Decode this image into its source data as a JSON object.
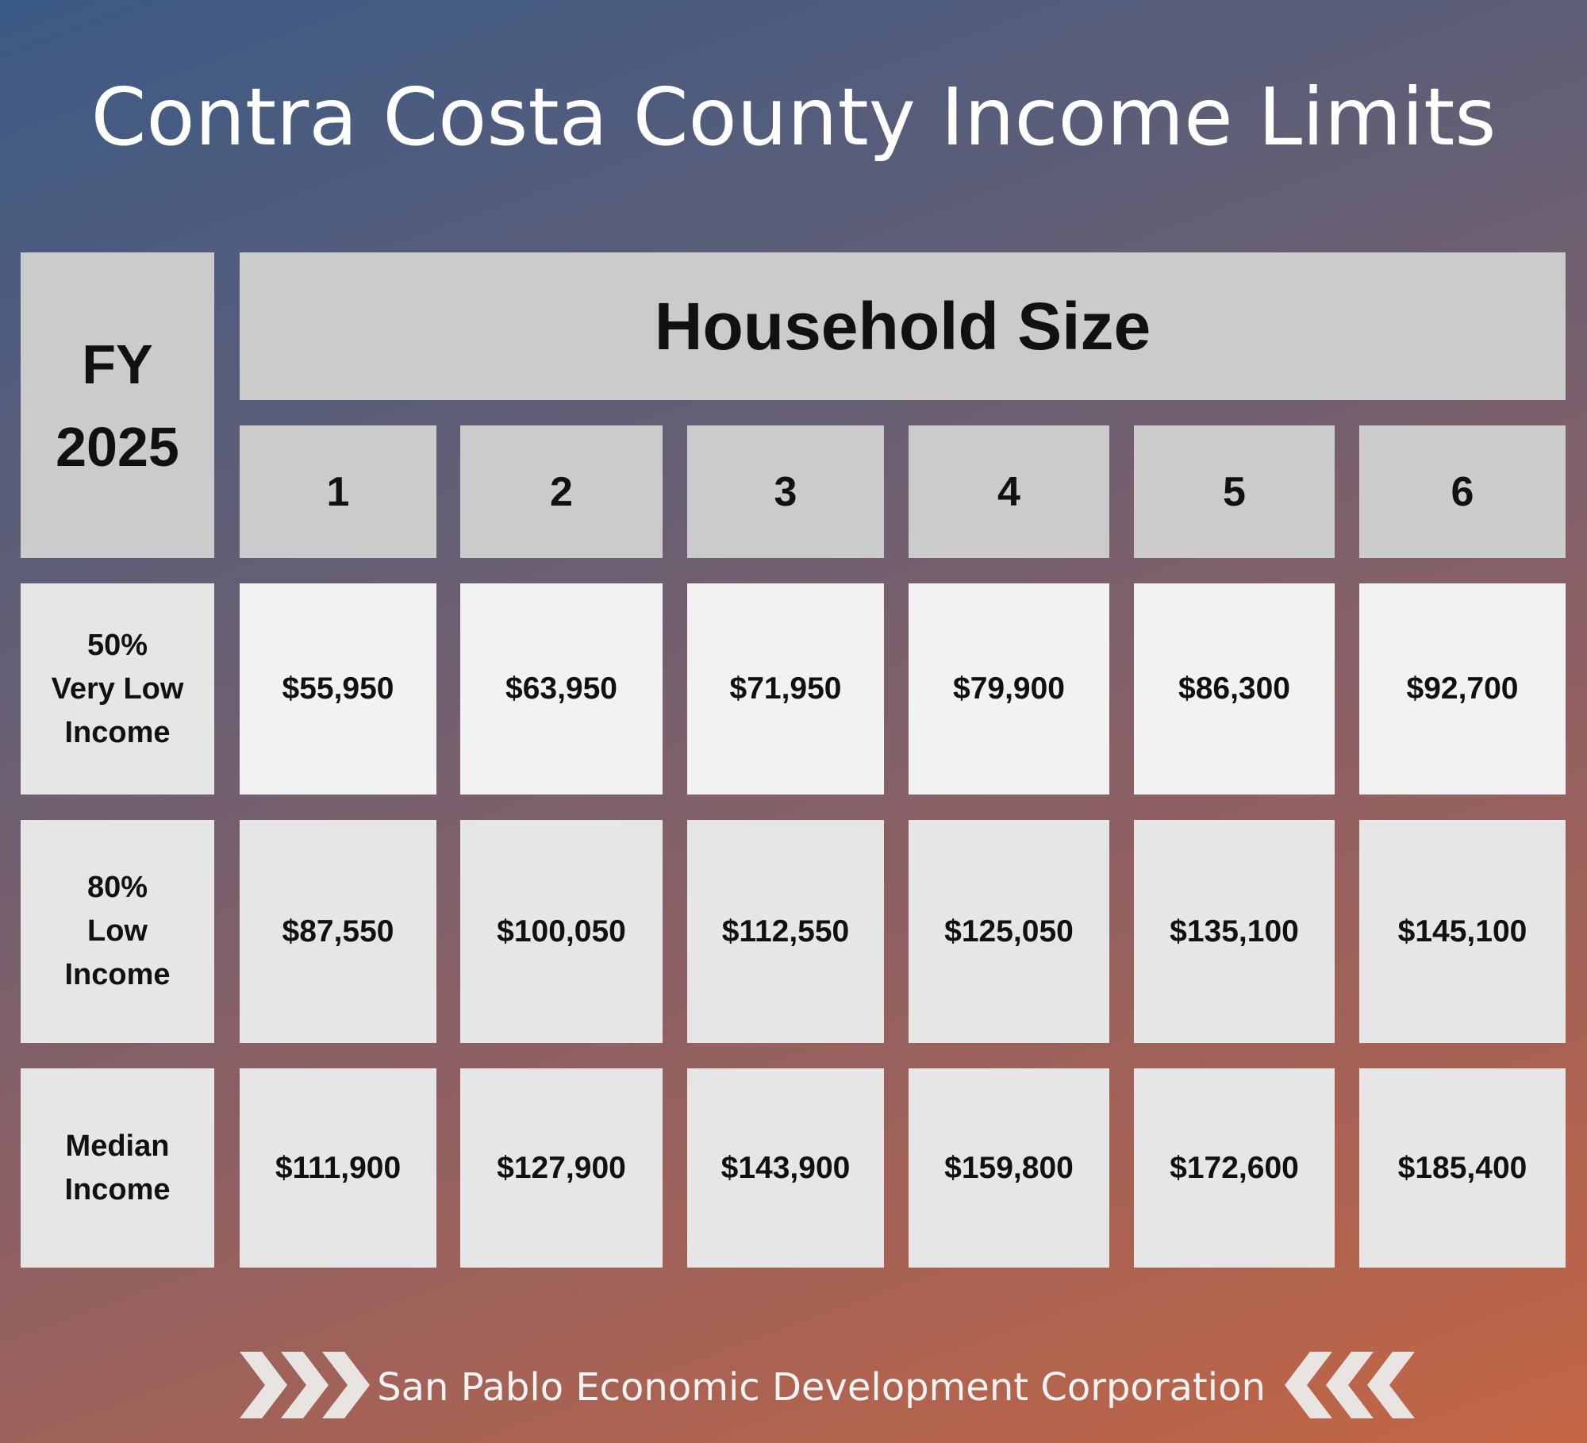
{
  "title": "Contra Costa County Income Limits",
  "table": {
    "corner": [
      "FY",
      "2025"
    ],
    "group_header": "Household Size",
    "columns": [
      "1",
      "2",
      "3",
      "4",
      "5",
      "6"
    ],
    "rows": [
      {
        "label": [
          "50%",
          "Very Low",
          "Income"
        ],
        "values": [
          "$55,950",
          "$63,950",
          "$71,950",
          "$79,900",
          "$86,300",
          "$92,700"
        ]
      },
      {
        "label": [
          "80%",
          "Low",
          "Income"
        ],
        "values": [
          "$87,550",
          "$100,050",
          "$112,550",
          "$125,050",
          "$135,100",
          "$145,100"
        ]
      },
      {
        "label": [
          "Median",
          "Income"
        ],
        "values": [
          "$111,900",
          "$127,900",
          "$143,900",
          "$159,800",
          "$172,600",
          "$185,400"
        ]
      }
    ]
  },
  "footer": "San Pablo Economic Development Corporation"
}
